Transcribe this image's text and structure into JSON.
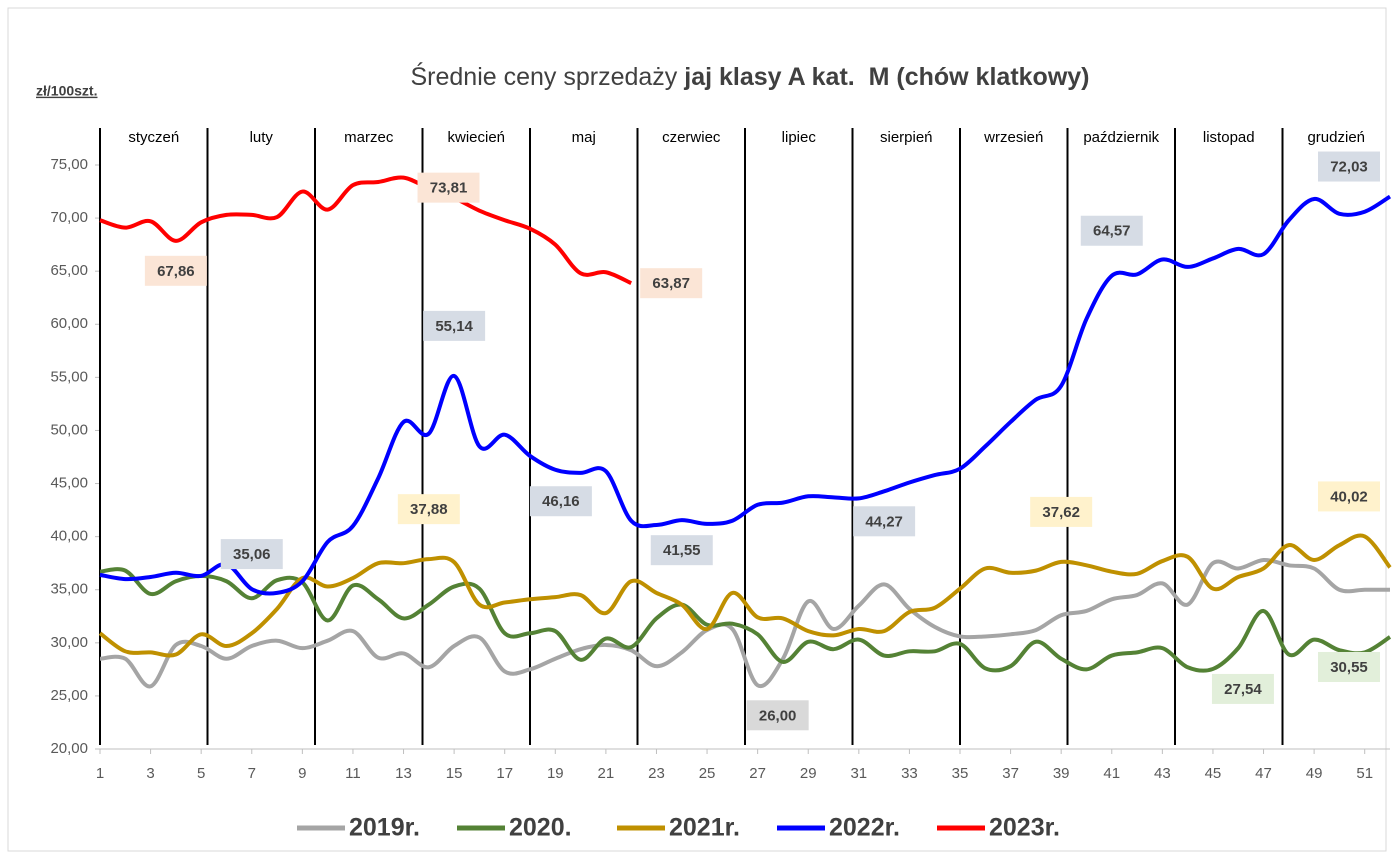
{
  "chart_data": {
    "type": "line",
    "title": {
      "regular": "Średnie ceny sprzedaży ",
      "bold": "jaj klasy A kat.  M (chów klatkowy)"
    },
    "y_axis_label": "zł/100szt.",
    "months": [
      "styczeń",
      "luty",
      "marzec",
      "kwiecień",
      "maj",
      "czerwiec",
      "lipiec",
      "sierpień",
      "wrzesień",
      "październik",
      "listopad",
      "grudzień"
    ],
    "x": [
      1,
      2,
      3,
      4,
      5,
      6,
      7,
      8,
      9,
      10,
      11,
      12,
      13,
      14,
      15,
      16,
      17,
      18,
      19,
      20,
      21,
      22,
      23,
      24,
      25,
      26,
      27,
      28,
      29,
      30,
      31,
      32,
      33,
      34,
      35,
      36,
      37,
      38,
      39,
      40,
      41,
      42,
      43,
      44,
      45,
      46,
      47,
      48,
      49,
      50,
      51,
      52
    ],
    "xlim": [
      1,
      52
    ],
    "xticks": [
      1,
      3,
      5,
      7,
      9,
      11,
      13,
      15,
      17,
      19,
      21,
      23,
      25,
      27,
      29,
      31,
      33,
      35,
      37,
      39,
      41,
      43,
      45,
      47,
      49,
      51
    ],
    "ylim": [
      20,
      75
    ],
    "yticks": [
      {
        "value": 20,
        "label": "20,00"
      },
      {
        "value": 25,
        "label": "25,00"
      },
      {
        "value": 30,
        "label": "30,00"
      },
      {
        "value": 35,
        "label": "35,00"
      },
      {
        "value": 40,
        "label": "40,00"
      },
      {
        "value": 45,
        "label": "45,00"
      },
      {
        "value": 50,
        "label": "50,00"
      },
      {
        "value": 55,
        "label": "55,00"
      },
      {
        "value": 60,
        "label": "60,00"
      },
      {
        "value": 65,
        "label": "65,00"
      },
      {
        "value": 70,
        "label": "70,00"
      },
      {
        "value": 75,
        "label": "75,00"
      }
    ],
    "legend": "bottom",
    "series": [
      {
        "name": "2019r.",
        "color": "#a5a5a5",
        "label_bg": "#d9d9d9",
        "values": [
          28.5,
          28.5,
          25.9,
          29.8,
          29.7,
          28.5,
          29.7,
          30.2,
          29.5,
          30.2,
          31.1,
          28.6,
          29.0,
          27.7,
          29.7,
          30.5,
          27.3,
          27.5,
          28.5,
          29.4,
          29.8,
          29.3,
          27.8,
          29.1,
          31.2,
          31.3,
          26.0,
          28.5,
          33.9,
          31.3,
          33.5,
          35.5,
          33.2,
          31.5,
          30.6,
          30.6,
          30.8,
          31.2,
          32.6,
          33.0,
          34.1,
          34.5,
          35.6,
          33.6,
          37.5,
          37.0,
          37.8,
          37.3,
          37.0,
          35.0,
          35.0,
          35.0
        ],
        "value_labels": [
          null,
          null,
          null,
          null,
          null,
          null,
          null,
          null,
          null,
          null,
          null,
          null,
          null,
          null,
          null,
          null,
          null,
          null,
          null,
          null,
          null,
          null,
          null,
          null,
          null,
          null,
          "26,00",
          null,
          null,
          null,
          null,
          null,
          null,
          null,
          null,
          null,
          null,
          null,
          null,
          null,
          null,
          null,
          null,
          null,
          null,
          null,
          null,
          null,
          null,
          null,
          null,
          null
        ]
      },
      {
        "name": "2020.",
        "color": "#548235",
        "label_bg": "#e2efda",
        "values": [
          36.7,
          36.8,
          34.6,
          35.8,
          36.3,
          35.8,
          34.2,
          35.9,
          35.7,
          32.1,
          35.4,
          34.1,
          32.3,
          33.6,
          35.3,
          35.1,
          30.9,
          30.9,
          31.1,
          28.4,
          30.4,
          29.6,
          32.3,
          33.6,
          31.7,
          31.8,
          30.8,
          28.2,
          30.1,
          29.4,
          30.3,
          28.8,
          29.2,
          29.2,
          29.9,
          27.6,
          27.8,
          30.1,
          28.5,
          27.5,
          28.8,
          29.1,
          29.5,
          27.7,
          27.54,
          29.5,
          33.0,
          28.9,
          30.3,
          29.3,
          29.1,
          30.55
        ],
        "value_labels": [
          null,
          null,
          null,
          null,
          null,
          null,
          null,
          null,
          null,
          null,
          null,
          null,
          null,
          null,
          null,
          null,
          null,
          null,
          null,
          null,
          null,
          null,
          null,
          null,
          null,
          null,
          null,
          null,
          null,
          null,
          null,
          null,
          null,
          null,
          null,
          null,
          null,
          null,
          null,
          null,
          null,
          null,
          null,
          null,
          "27,54",
          null,
          null,
          null,
          null,
          null,
          null,
          "30,55"
        ]
      },
      {
        "name": "2021r.",
        "color": "#bf9000",
        "label_bg": "#fff2cc",
        "values": [
          30.9,
          29.2,
          29.1,
          28.9,
          30.8,
          29.7,
          30.9,
          33.2,
          36.1,
          35.3,
          36.1,
          37.5,
          37.5,
          37.88,
          37.6,
          33.6,
          33.8,
          34.1,
          34.3,
          34.5,
          32.8,
          35.8,
          34.7,
          33.6,
          31.3,
          34.7,
          32.4,
          32.3,
          31.1,
          30.7,
          31.3,
          31.1,
          32.9,
          33.3,
          35.1,
          37.0,
          36.6,
          36.8,
          37.62,
          37.3,
          36.7,
          36.5,
          37.7,
          38.1,
          35.1,
          36.2,
          37.0,
          39.2,
          37.8,
          39.2,
          40.02,
          37.1
        ],
        "value_labels": [
          null,
          null,
          null,
          null,
          null,
          null,
          null,
          null,
          null,
          null,
          null,
          null,
          null,
          "37,88",
          null,
          null,
          null,
          null,
          null,
          null,
          null,
          null,
          null,
          null,
          null,
          null,
          null,
          null,
          null,
          null,
          null,
          null,
          null,
          null,
          null,
          null,
          null,
          null,
          "37,62",
          null,
          null,
          null,
          null,
          null,
          null,
          null,
          null,
          null,
          null,
          null,
          "40,02",
          null
        ]
      },
      {
        "name": "2022r.",
        "color": "#0000ff",
        "label_bg": "#d6dce5",
        "values": [
          36.4,
          36.0,
          36.2,
          36.6,
          36.3,
          37.4,
          35.06,
          34.7,
          35.8,
          39.5,
          41.0,
          45.5,
          50.8,
          49.7,
          55.14,
          48.5,
          49.6,
          47.6,
          46.3,
          46.0,
          46.16,
          41.5,
          41.1,
          41.55,
          41.2,
          41.5,
          43.0,
          43.2,
          43.8,
          43.7,
          43.6,
          44.27,
          45.1,
          45.8,
          46.4,
          48.5,
          50.8,
          52.9,
          54.2,
          60.5,
          64.57,
          64.7,
          66.1,
          65.4,
          66.2,
          67.1,
          66.6,
          69.8,
          71.8,
          70.4,
          70.6,
          72.03
        ],
        "value_labels": [
          null,
          null,
          null,
          null,
          null,
          null,
          "35,06",
          null,
          null,
          null,
          null,
          null,
          null,
          null,
          "55,14",
          null,
          null,
          null,
          null,
          null,
          "46,16",
          null,
          null,
          "41,55",
          null,
          null,
          null,
          null,
          null,
          null,
          null,
          "44,27",
          null,
          null,
          null,
          null,
          null,
          null,
          null,
          null,
          "64,57",
          null,
          null,
          null,
          null,
          null,
          null,
          null,
          null,
          null,
          null,
          "72,03"
        ]
      },
      {
        "name": "2023r.",
        "color": "#ff0000",
        "label_bg": "#fbe5d6",
        "values": [
          69.8,
          69.1,
          69.7,
          67.86,
          69.6,
          70.3,
          70.3,
          70.1,
          72.5,
          70.8,
          73.1,
          73.4,
          73.81,
          72.8,
          71.9,
          70.7,
          69.8,
          69.0,
          67.5,
          64.8,
          64.9,
          63.87,
          null,
          null,
          null,
          null,
          null,
          null,
          null,
          null,
          null,
          null,
          null,
          null,
          null,
          null,
          null,
          null,
          null,
          null,
          null,
          null,
          null,
          null,
          null,
          null,
          null,
          null,
          null,
          null,
          null,
          null
        ],
        "value_labels": [
          null,
          null,
          null,
          "67,86",
          null,
          null,
          null,
          null,
          null,
          null,
          null,
          null,
          "73,81",
          null,
          null,
          null,
          null,
          null,
          null,
          null,
          null,
          "63,87",
          null,
          null,
          null,
          null,
          null,
          null,
          null,
          null,
          null,
          null,
          null,
          null,
          null,
          null,
          null,
          null,
          null,
          null,
          null,
          null,
          null,
          null,
          null,
          null,
          null,
          null,
          null,
          null,
          null,
          null
        ]
      }
    ]
  }
}
